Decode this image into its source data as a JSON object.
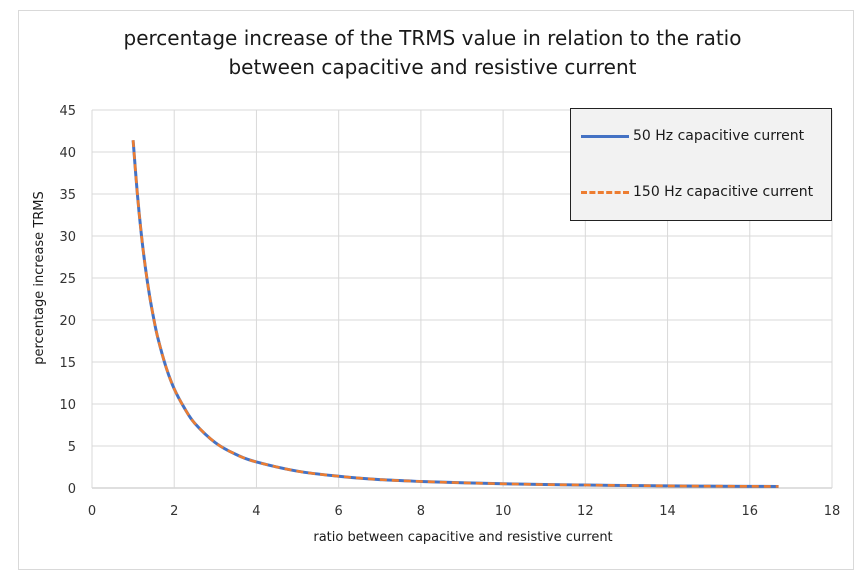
{
  "chart_data": {
    "type": "line",
    "title_lines": [
      "percentage increase of the TRMS value in relation to the ratio",
      "between capacitive and resistive current"
    ],
    "xlabel": "ratio between capacitive and resistive current",
    "ylabel": "percentage increase TRMS",
    "xlim": [
      0,
      18
    ],
    "ylim": [
      0,
      45
    ],
    "xticks": [
      0,
      2,
      4,
      6,
      8,
      10,
      12,
      14,
      16,
      18
    ],
    "yticks": [
      0,
      5,
      10,
      15,
      20,
      25,
      30,
      35,
      40,
      45
    ],
    "grid": true,
    "legend_position": "top-right",
    "series": [
      {
        "name": "50 Hz capacitive current",
        "color": "#4472c4",
        "style": "solid",
        "x": [
          1,
          1.1,
          1.2,
          1.3,
          1.4,
          1.5,
          1.6,
          1.8,
          2,
          2.25,
          2.5,
          3,
          3.5,
          4,
          5,
          6,
          7,
          8,
          9,
          10,
          11,
          12,
          13,
          14,
          15,
          16,
          16.7
        ],
        "y": [
          41.4,
          35.2,
          30.2,
          26.2,
          22.9,
          20.2,
          17.9,
          14.4,
          11.8,
          9.5,
          7.7,
          5.4,
          4.0,
          3.1,
          2.0,
          1.4,
          1.0,
          0.78,
          0.62,
          0.5,
          0.41,
          0.35,
          0.3,
          0.25,
          0.22,
          0.2,
          0.18
        ]
      },
      {
        "name": "150 Hz capacitive current",
        "color": "#ed7d31",
        "style": "dashed",
        "x": [
          1,
          1.1,
          1.2,
          1.3,
          1.4,
          1.5,
          1.6,
          1.8,
          2,
          2.25,
          2.5,
          3,
          3.5,
          4,
          5,
          6,
          7,
          8,
          9,
          10,
          11,
          12,
          13,
          14,
          15,
          16,
          16.7
        ],
        "y": [
          41.4,
          35.2,
          30.2,
          26.2,
          22.9,
          20.2,
          17.9,
          14.4,
          11.8,
          9.5,
          7.7,
          5.4,
          4.0,
          3.1,
          2.0,
          1.4,
          1.0,
          0.78,
          0.62,
          0.5,
          0.41,
          0.35,
          0.3,
          0.25,
          0.22,
          0.2,
          0.18
        ]
      }
    ]
  }
}
